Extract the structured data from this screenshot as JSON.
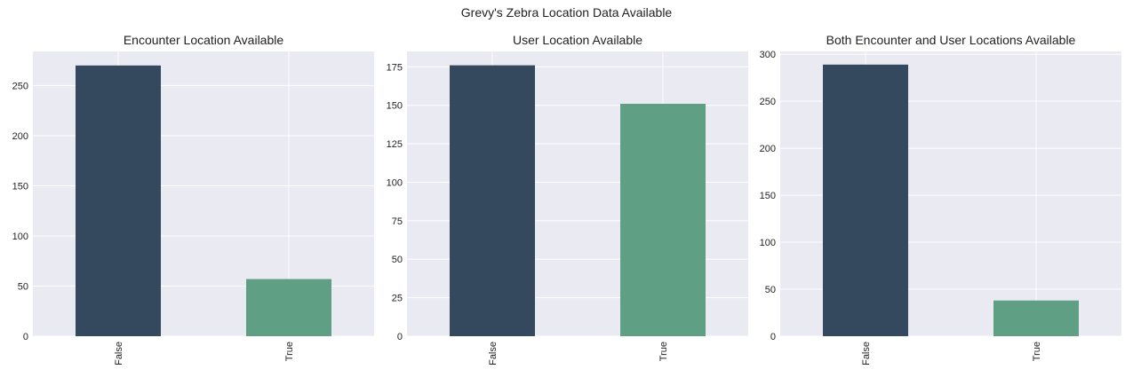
{
  "figure": {
    "title": "Grevy's Zebra Location Data Available"
  },
  "chart_data": [
    {
      "type": "bar",
      "title": "Encounter Location Available",
      "categories": [
        "False",
        "True"
      ],
      "values": [
        270,
        57
      ],
      "ylim": [
        0,
        284
      ],
      "yticks": [
        0,
        50,
        100,
        150,
        200,
        250
      ],
      "colors": [
        "#34495e",
        "#5fa084"
      ],
      "grid": true
    },
    {
      "type": "bar",
      "title": "User Location Available",
      "categories": [
        "False",
        "True"
      ],
      "values": [
        176,
        151
      ],
      "ylim": [
        0,
        185
      ],
      "yticks": [
        0,
        25,
        50,
        75,
        100,
        125,
        150,
        175
      ],
      "colors": [
        "#34495e",
        "#5fa084"
      ],
      "grid": true
    },
    {
      "type": "bar",
      "title": "Both Encounter and User Locations Available",
      "categories": [
        "False",
        "True"
      ],
      "values": [
        289,
        38
      ],
      "ylim": [
        0,
        303
      ],
      "yticks": [
        0,
        50,
        100,
        150,
        200,
        250,
        300
      ],
      "colors": [
        "#34495e",
        "#5fa084"
      ],
      "grid": true
    }
  ]
}
